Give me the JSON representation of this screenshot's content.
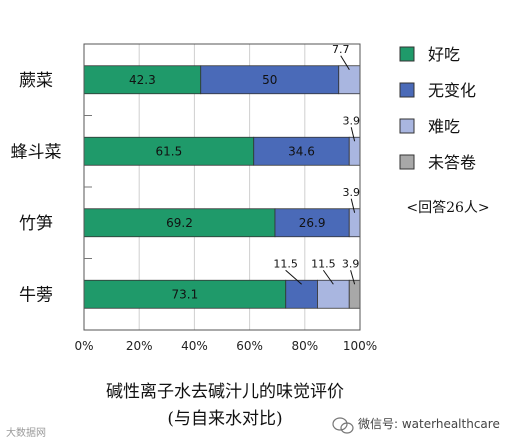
{
  "chart_data": {
    "type": "bar",
    "orientation": "horizontal",
    "stacked": true,
    "title": "碱性离子水去碱汁儿的味觉评价",
    "subtitle": "(与自来水对比)",
    "categories": [
      "蕨菜",
      "蜂斗菜",
      "竹笋",
      "牛蒡"
    ],
    "series": [
      {
        "name": "好吃",
        "values": [
          42.3,
          61.5,
          69.2,
          73.1
        ],
        "color": "#1f9a6a"
      },
      {
        "name": "无变化",
        "values": [
          50,
          34.6,
          26.9,
          11.5
        ],
        "color": "#4a6ab8"
      },
      {
        "name": "难吃",
        "values": [
          7.7,
          3.9,
          3.9,
          11.5
        ],
        "color": "#a9b6e0"
      },
      {
        "name": "未答卷",
        "values": [
          0,
          0,
          0,
          3.9
        ],
        "color": "#a8a8a8"
      }
    ],
    "xlim": [
      0,
      100
    ],
    "x_ticks": [
      "0%",
      "20%",
      "40%",
      "60%",
      "80%",
      "100%"
    ],
    "grid": true,
    "legend_position": "right",
    "legend_note": "<回答26人>"
  },
  "watermark_left": "大数据网",
  "watermark_right": "微信号: waterhealthcare"
}
